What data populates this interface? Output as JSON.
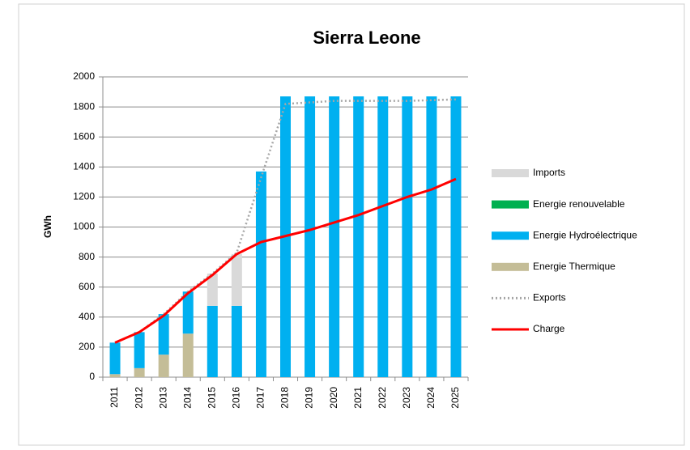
{
  "chart_data": {
    "type": "bar",
    "title": "Sierra Leone",
    "y_label": "GWh",
    "categories": [
      "2011",
      "2012",
      "2013",
      "2014",
      "2015",
      "2016",
      "2017",
      "2018",
      "2019",
      "2020",
      "2021",
      "2022",
      "2023",
      "2024",
      "2025"
    ],
    "series": [
      {
        "name": "Imports",
        "type": "bar",
        "color": "#d9d9d9",
        "values": [
          0,
          0,
          0,
          0,
          215,
          345,
          0,
          0,
          0,
          0,
          0,
          0,
          0,
          0,
          0
        ]
      },
      {
        "name": "Energie renouvelable",
        "type": "bar",
        "color": "#00b050",
        "values": [
          0,
          0,
          0,
          0,
          0,
          0,
          0,
          0,
          0,
          0,
          0,
          0,
          0,
          0,
          0
        ]
      },
      {
        "name": "Energie Hydroélectrique",
        "type": "bar",
        "color": "#00b0f0",
        "values": [
          210,
          240,
          270,
          280,
          475,
          475,
          1370,
          1870,
          1870,
          1870,
          1870,
          1870,
          1870,
          1870,
          1870
        ]
      },
      {
        "name": "Energie Thermique",
        "type": "bar",
        "color": "#c4bd97",
        "values": [
          20,
          60,
          150,
          290,
          0,
          0,
          0,
          0,
          0,
          0,
          0,
          0,
          0,
          0,
          0
        ]
      },
      {
        "name": "Exports",
        "type": "line",
        "dashed": true,
        "color": "#a6a6a6",
        "values": [
          230,
          300,
          420,
          570,
          690,
          830,
          1330,
          1820,
          1830,
          1840,
          1840,
          1840,
          1840,
          1845,
          1850
        ]
      },
      {
        "name": "Charge",
        "type": "line",
        "color": "#ff0000",
        "values": [
          230,
          300,
          410,
          560,
          680,
          820,
          900,
          940,
          980,
          1030,
          1080,
          1140,
          1200,
          1250,
          1320
        ]
      }
    ],
    "ylim": [
      0,
      2000
    ],
    "yticks": [
      0,
      200,
      400,
      600,
      800,
      1000,
      1200,
      1400,
      1600,
      1800,
      2000
    ],
    "grid": true,
    "legend": "right"
  }
}
